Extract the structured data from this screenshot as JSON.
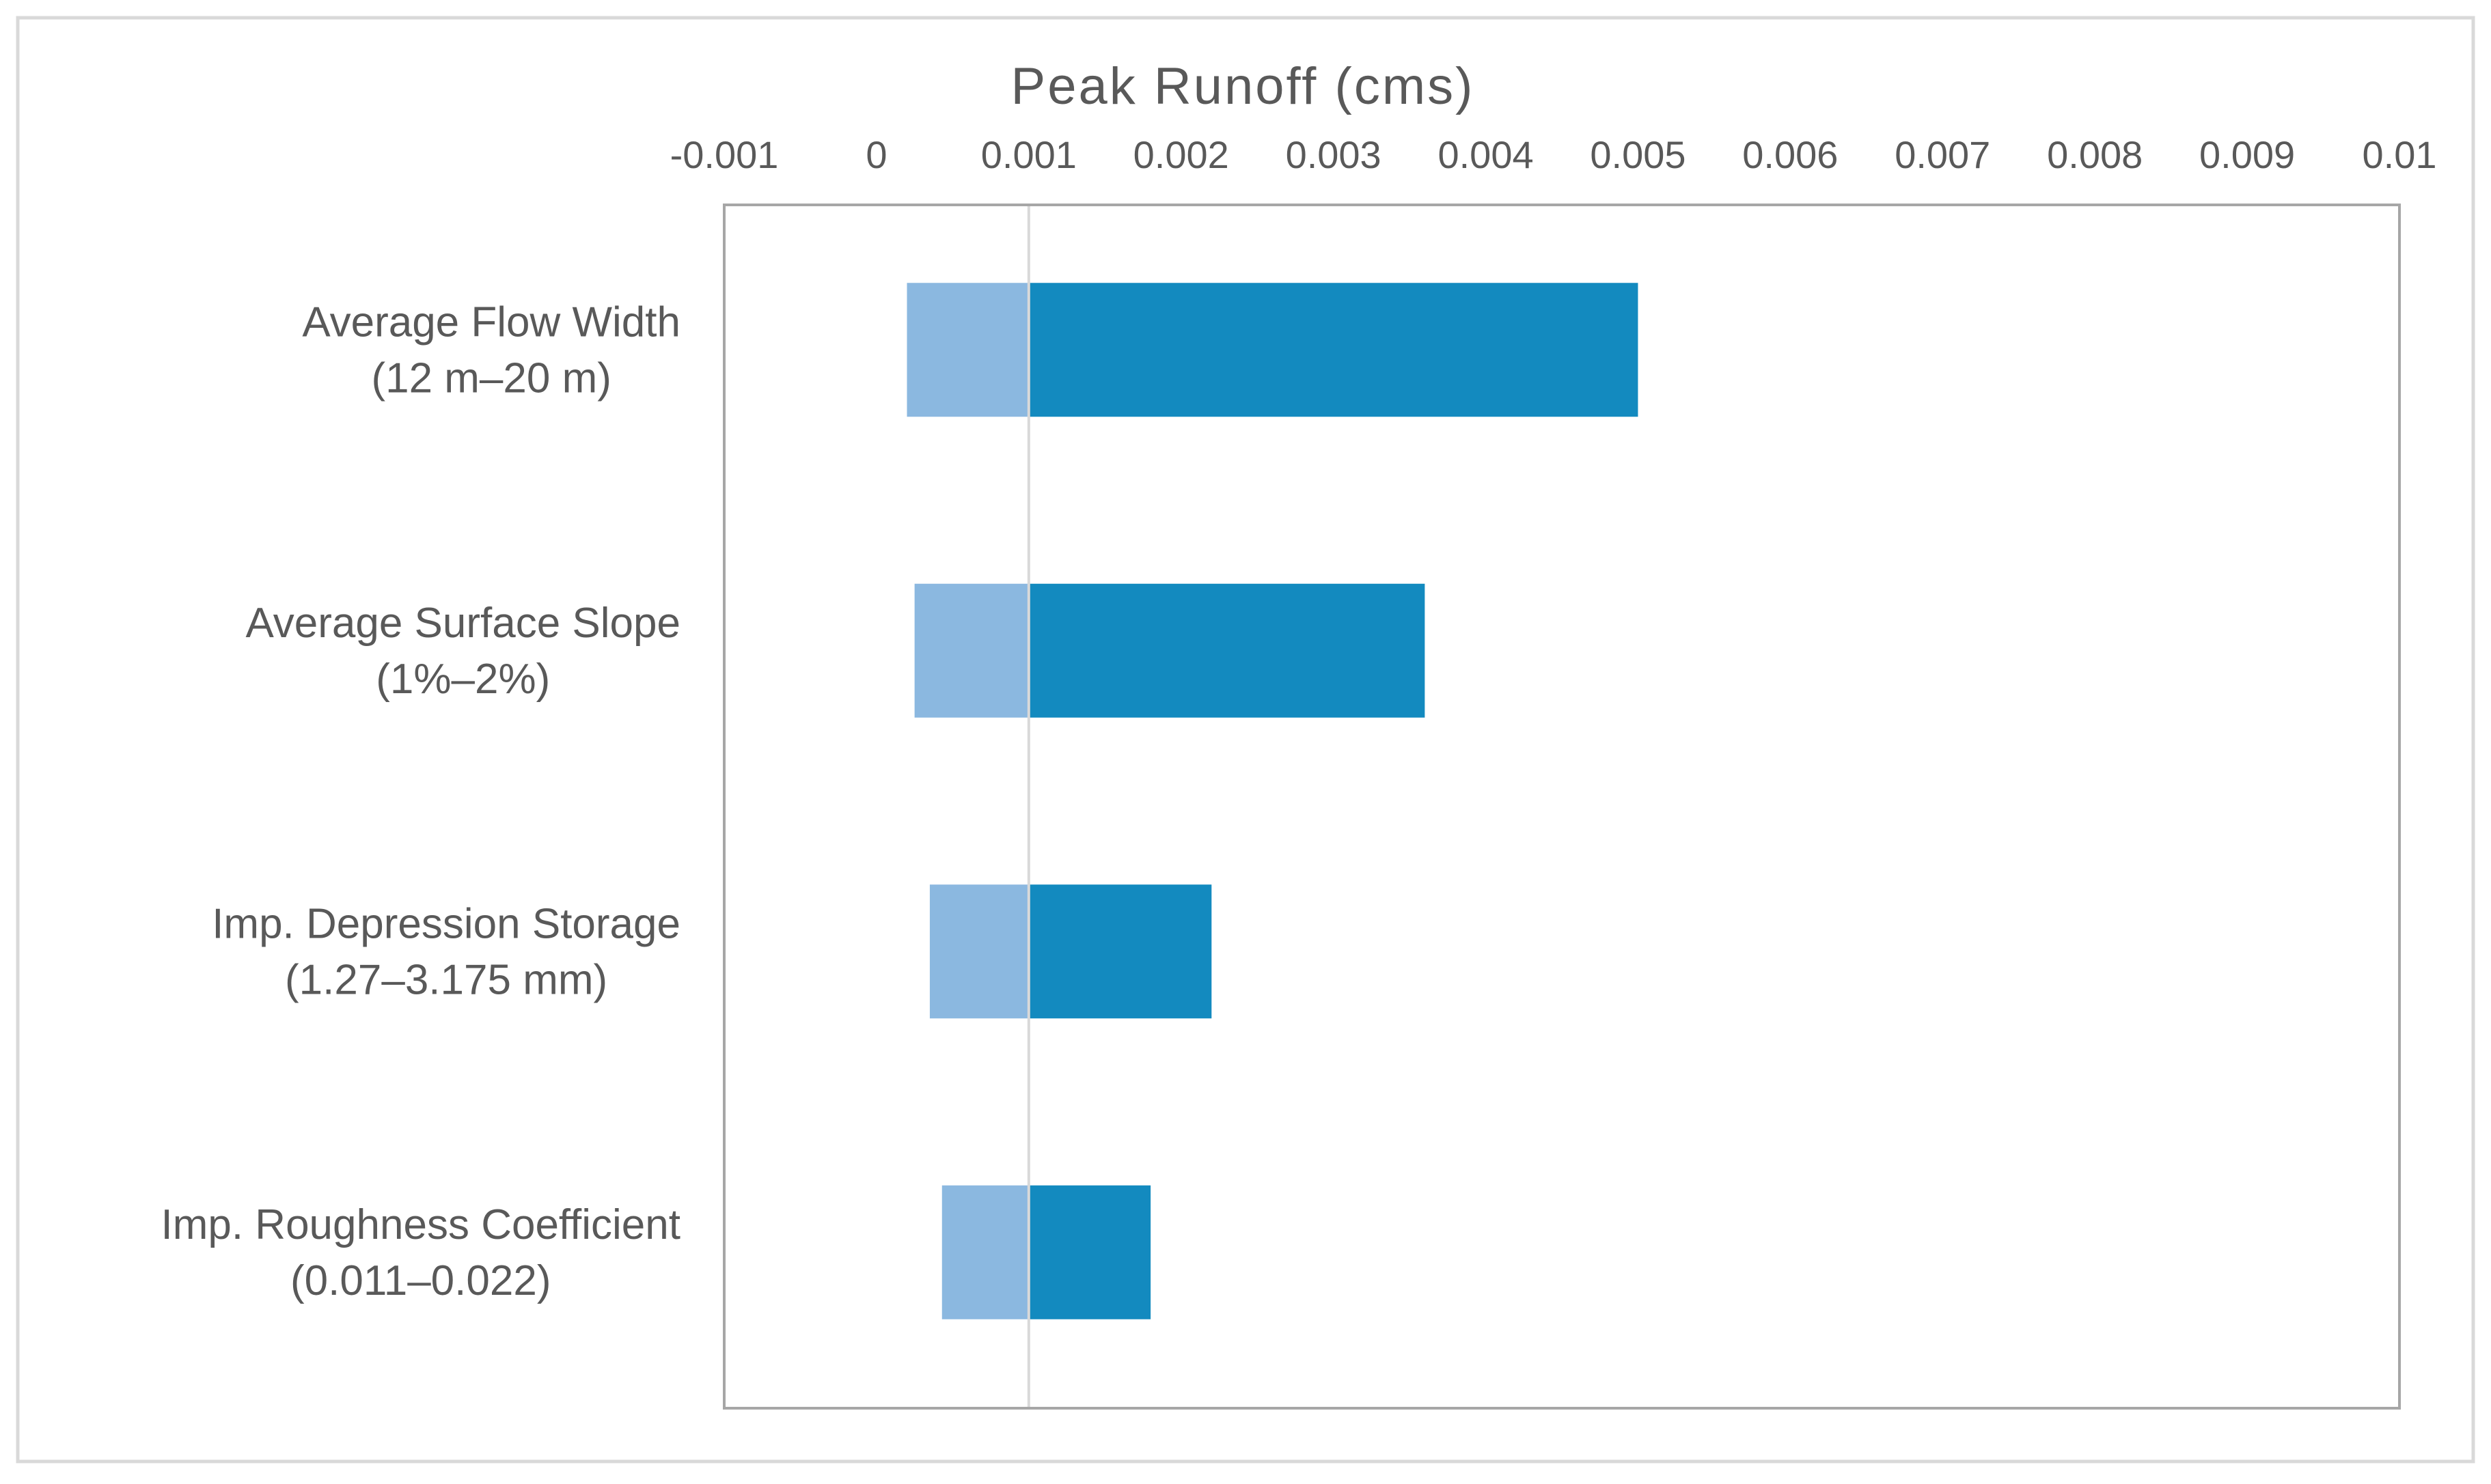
{
  "chart_data": {
    "type": "bar",
    "orientation": "horizontal",
    "style": "tornado",
    "title": "Peak Runoff (cms)",
    "xlim": [
      -0.001,
      0.01
    ],
    "x_ticks": [
      -0.001,
      0,
      0.001,
      0.002,
      0.003,
      0.004,
      0.005,
      0.006,
      0.007,
      0.008,
      0.009,
      0.01
    ],
    "x_tick_labels": [
      "-0.001",
      "0",
      "0.001",
      "0.002",
      "0.003",
      "0.004",
      "0.005",
      "0.006",
      "0.007",
      "0.008",
      "0.009",
      "0.01"
    ],
    "x_axis_position": "top",
    "baseline": 0.001,
    "grid": false,
    "legend": "none",
    "categories": [
      [
        "Average Flow Width",
        "(12 m–20 m)"
      ],
      [
        "Average Surface Slope",
        "(1%–2%)"
      ],
      [
        "Imp. Depression Storage",
        "(1.27–3.175 mm)"
      ],
      [
        "Imp. Roughness Coefficient",
        "(0.011–0.022)"
      ]
    ],
    "series": [
      {
        "color": "#8bb8e0",
        "values": [
          0.0002,
          0.00025,
          0.00035,
          0.00043
        ]
      },
      {
        "color": "#138abf",
        "values": [
          0.005,
          0.0036,
          0.0022,
          0.0018
        ]
      }
    ]
  },
  "colors": {
    "frame_border": "#d9d9d9",
    "plot_border": "#a6a6a6",
    "baseline": "#d9d9d9",
    "text": "#595959"
  }
}
